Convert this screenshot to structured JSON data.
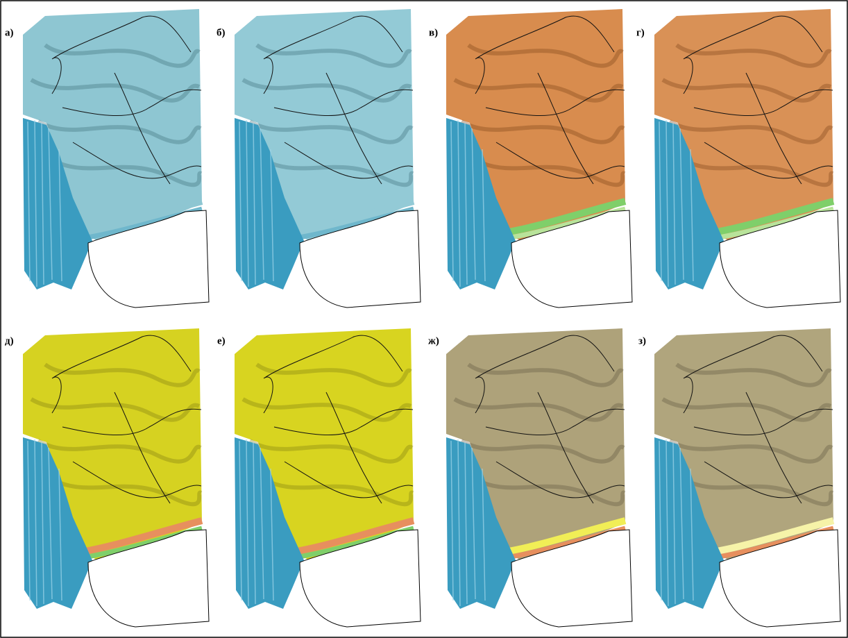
{
  "panels": [
    {
      "label": "а)"
    },
    {
      "label": "б)"
    },
    {
      "label": "в)"
    },
    {
      "label": "г)"
    },
    {
      "label": "д)"
    },
    {
      "label": "е)"
    },
    {
      "label": "ж)"
    },
    {
      "label": "з)"
    }
  ]
}
